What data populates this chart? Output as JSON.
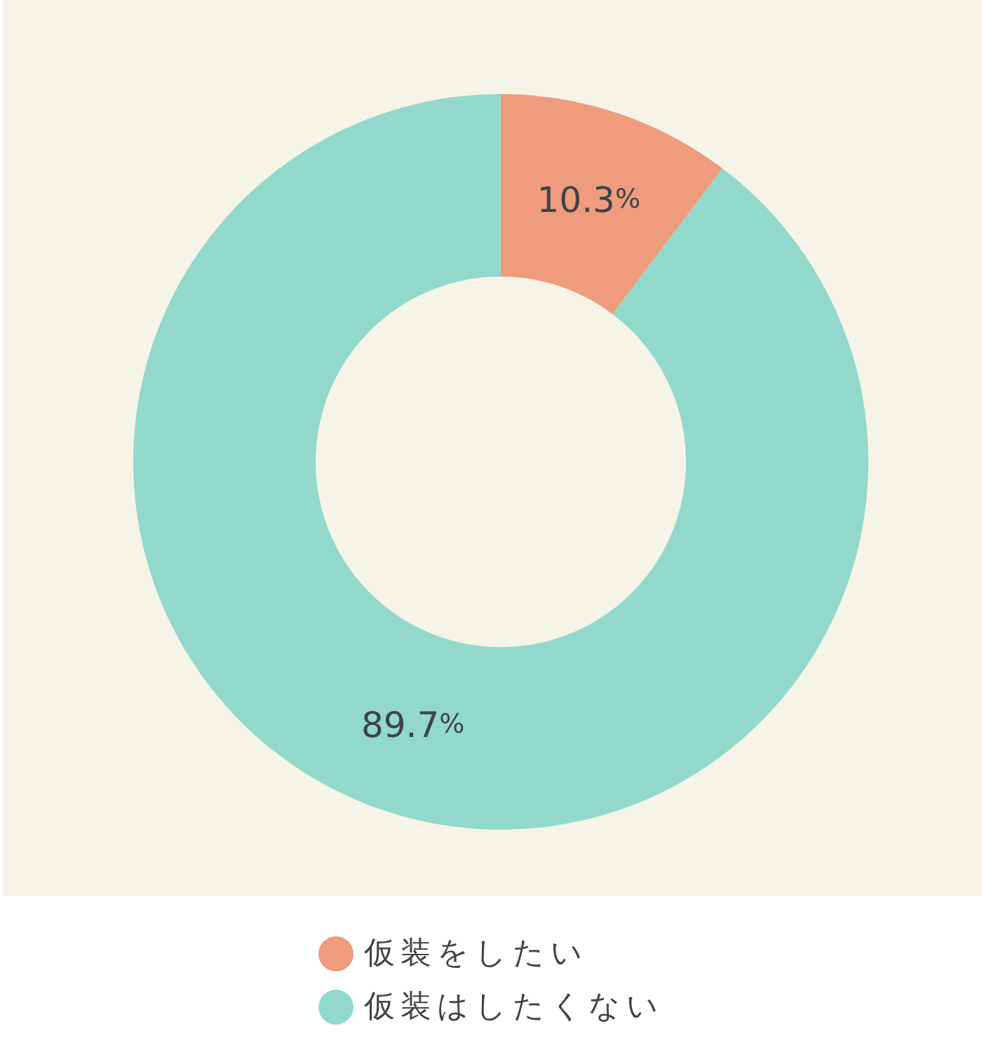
{
  "chart_data": {
    "type": "donut",
    "categories": [
      "仮装をしたい",
      "仮装はしたくない"
    ],
    "values": [
      10.3,
      89.7
    ],
    "colors": [
      "#ee9b7e",
      "#92d9cb"
    ],
    "value_labels": [
      "10.3%",
      "89.7%"
    ],
    "legend": "bottom"
  }
}
